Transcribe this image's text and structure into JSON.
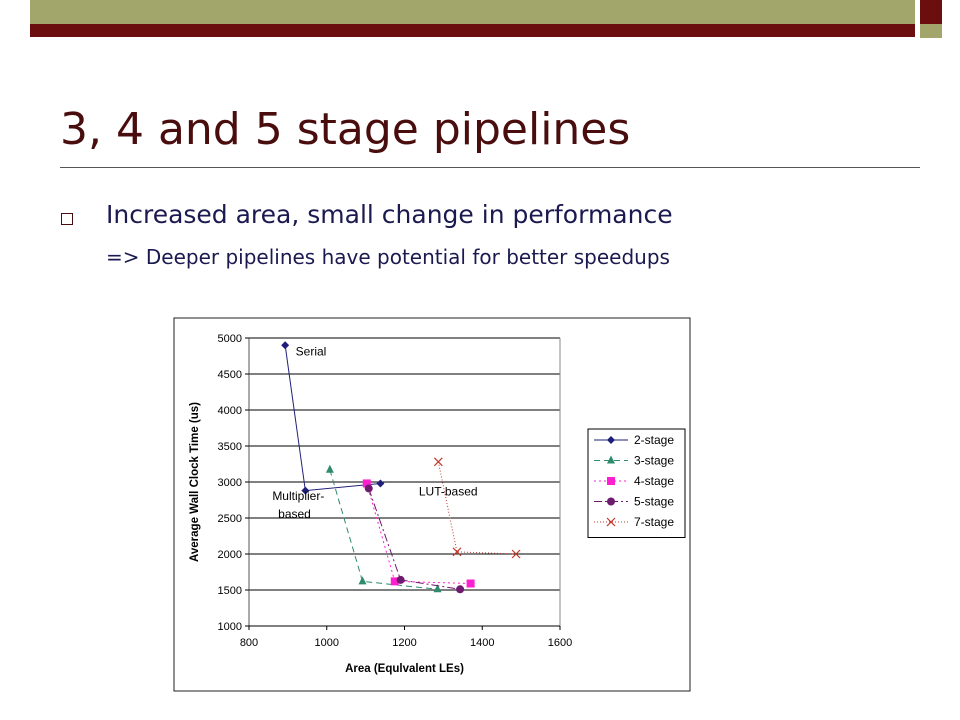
{
  "slide": {
    "title": "3, 4 and 5 stage pipelines",
    "bullet": "Increased area, small change in performance",
    "subbullet": "=> Deeper pipelines have potential for better speedups"
  },
  "colors": {
    "title": "#4a0d0d",
    "text": "#1a1a50",
    "bar_olive": "#a3a66a",
    "bar_dark": "#6b0e0e"
  },
  "chart_data": {
    "type": "line",
    "xlabel": "Area (Equlvalent LEs)",
    "ylabel": "Average Wall Clock Time (us)",
    "xlim": [
      800,
      1600
    ],
    "ylim": [
      1000,
      5000
    ],
    "xticks": [
      800,
      1000,
      1200,
      1400,
      1600
    ],
    "yticks": [
      1000,
      1500,
      2000,
      2500,
      3000,
      3500,
      4000,
      4500,
      5000
    ],
    "grid": "horizontal",
    "legend_position": "right",
    "series": [
      {
        "name": "2-stage",
        "color": "#1f1f7a",
        "marker": "diamond",
        "dash": "",
        "points": [
          [
            893,
            4900
          ],
          [
            945,
            2880
          ],
          [
            1138,
            2980
          ]
        ]
      },
      {
        "name": "3-stage",
        "color": "#2e8b6b",
        "marker": "triangle",
        "dash": "6,4",
        "points": [
          [
            1008,
            3170
          ],
          [
            1092,
            1620
          ],
          [
            1285,
            1510
          ]
        ]
      },
      {
        "name": "4-stage",
        "color": "#ff1fd0",
        "marker": "square",
        "dash": "2,3",
        "points": [
          [
            1103,
            2980
          ],
          [
            1175,
            1620
          ],
          [
            1370,
            1590
          ]
        ]
      },
      {
        "name": "5-stage",
        "color": "#6e1a6e",
        "marker": "circle",
        "dash": "8,3,2,3",
        "points": [
          [
            1108,
            2910
          ],
          [
            1190,
            1640
          ],
          [
            1343,
            1510
          ]
        ]
      },
      {
        "name": "7-stage",
        "color": "#c0392b",
        "marker": "x",
        "dash": "1,2",
        "points": [
          [
            1287,
            3280
          ],
          [
            1335,
            2030
          ],
          [
            1487,
            2000
          ]
        ]
      }
    ],
    "annotations": [
      {
        "text": "Serial",
        "x": 920,
        "y": 4760
      },
      {
        "text": "Multiplier-",
        "x": 860,
        "y": 2750
      },
      {
        "text": "based",
        "x": 875,
        "y": 2500
      },
      {
        "text": "LUT-based",
        "x": 1237,
        "y": 2810
      }
    ]
  }
}
